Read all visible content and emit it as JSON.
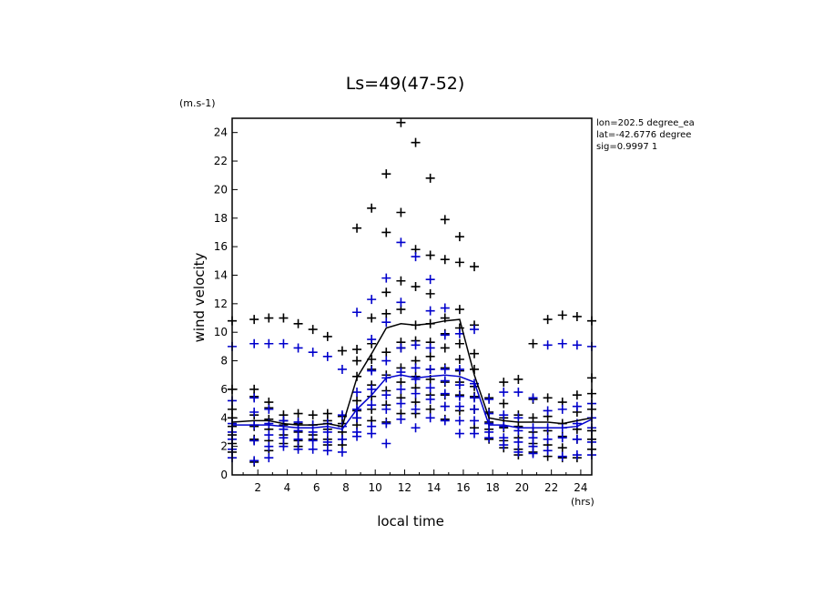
{
  "chart_data": {
    "type": "scatter",
    "title": "Ls=49(47-52)",
    "xlabel": "local time",
    "ylabel": "wind velocity",
    "y_unit": "(m.s-1)",
    "x_unit": "(hrs)",
    "xlim": [
      0.25,
      24.75
    ],
    "ylim": [
      0,
      25
    ],
    "xticks": [
      2,
      4,
      6,
      8,
      10,
      12,
      14,
      16,
      18,
      20,
      22,
      24
    ],
    "yticks": [
      0,
      2,
      4,
      6,
      8,
      10,
      12,
      14,
      16,
      18,
      20,
      22,
      24
    ],
    "annotations": [
      "lon=202.5 degree_ea",
      "lat=-42.6776 degree",
      "sig=0.9997 1"
    ],
    "colors": {
      "black": "#000000",
      "blue": "#0000cc"
    },
    "series": [
      {
        "color": "black",
        "marker": "plus",
        "x": [
          0.25,
          0.25,
          0.25,
          0.25,
          0.25,
          0.25,
          0.25,
          0.25,
          1.75,
          1.75,
          1.75,
          1.75,
          1.75,
          1.75,
          1.75,
          1.75,
          2.75,
          2.75,
          2.75,
          2.75,
          2.75,
          2.75,
          2.75,
          3.75,
          3.75,
          3.75,
          3.75,
          3.75,
          3.75,
          4.75,
          4.75,
          4.75,
          4.75,
          4.75,
          4.75,
          5.75,
          5.75,
          5.75,
          5.75,
          5.75,
          6.75,
          6.75,
          6.75,
          6.75,
          6.75,
          6.75,
          7.75,
          7.75,
          7.75,
          7.75,
          7.75,
          7.75,
          8.75,
          8.75,
          8.75,
          8.75,
          8.75,
          8.75,
          8.75,
          8.75,
          9.75,
          9.75,
          9.75,
          9.75,
          9.75,
          9.75,
          9.75,
          9.75,
          9.75,
          10.75,
          10.75,
          10.75,
          10.75,
          10.75,
          10.75,
          10.75,
          10.75,
          10.75,
          11.75,
          11.75,
          11.75,
          11.75,
          11.75,
          11.75,
          11.75,
          11.75,
          11.75,
          11.75,
          12.75,
          12.75,
          12.75,
          12.75,
          12.75,
          12.75,
          12.75,
          12.75,
          12.75,
          12.75,
          13.75,
          13.75,
          13.75,
          13.75,
          13.75,
          13.75,
          13.75,
          13.75,
          13.75,
          13.75,
          14.75,
          14.75,
          14.75,
          14.75,
          14.75,
          14.75,
          14.75,
          14.75,
          14.75,
          14.75,
          15.75,
          15.75,
          15.75,
          15.75,
          15.75,
          15.75,
          15.75,
          15.75,
          15.75,
          15.75,
          16.75,
          16.75,
          16.75,
          16.75,
          16.75,
          16.75,
          16.75,
          16.75,
          17.75,
          17.75,
          17.75,
          17.75,
          17.75,
          18.75,
          18.75,
          18.75,
          18.75,
          18.75,
          18.75,
          19.75,
          19.75,
          19.75,
          19.75,
          19.75,
          19.75,
          20.75,
          20.75,
          20.75,
          20.75,
          20.75,
          20.75,
          21.75,
          21.75,
          21.75,
          21.75,
          21.75,
          21.75,
          22.75,
          22.75,
          22.75,
          22.75,
          22.75,
          22.75,
          23.75,
          23.75,
          23.75,
          23.75,
          23.75,
          23.75,
          24.75,
          24.75,
          24.75,
          24.75,
          24.75,
          24.75,
          24.75
        ],
        "y": [
          10.8,
          6.0,
          4.6,
          4.0,
          3.4,
          2.8,
          2.2,
          1.6,
          10.9,
          6.0,
          5.5,
          4.2,
          3.4,
          2.5,
          2.4,
          0.9,
          11.0,
          5.1,
          4.7,
          3.9,
          3.2,
          2.4,
          1.7,
          11.0,
          4.2,
          3.8,
          3.5,
          2.8,
          2.2,
          10.6,
          4.3,
          3.6,
          3.0,
          2.4,
          2.0,
          10.2,
          4.2,
          3.5,
          2.8,
          2.5,
          9.7,
          4.3,
          3.8,
          3.2,
          2.5,
          2.1,
          8.7,
          4.1,
          3.6,
          3.0,
          2.5,
          2.1,
          17.3,
          8.8,
          8.0,
          6.9,
          5.2,
          4.5,
          4.0,
          3.5,
          18.7,
          11.0,
          9.2,
          8.1,
          7.4,
          6.3,
          5.5,
          4.6,
          3.8,
          21.1,
          17.0,
          12.8,
          11.3,
          8.6,
          7.0,
          5.9,
          4.9,
          3.7,
          24.7,
          18.4,
          13.6,
          11.6,
          9.3,
          8.9,
          7.5,
          6.5,
          5.4,
          4.3,
          23.3,
          15.8,
          13.2,
          10.5,
          9.4,
          8.0,
          6.9,
          6.1,
          5.1,
          4.3,
          20.8,
          15.4,
          12.7,
          10.6,
          9.3,
          8.3,
          7.4,
          6.7,
          5.6,
          4.6,
          17.9,
          15.1,
          11.0,
          9.9,
          8.9,
          7.5,
          6.5,
          5.6,
          4.8,
          3.9,
          16.7,
          14.9,
          11.6,
          10.3,
          9.2,
          8.1,
          7.3,
          6.5,
          5.6,
          4.5,
          14.6,
          10.5,
          8.5,
          7.4,
          6.2,
          5.5,
          4.6,
          3.3,
          5.4,
          4.4,
          3.7,
          3.2,
          2.5,
          6.5,
          5.0,
          4.0,
          3.3,
          2.4,
          1.9,
          6.7,
          4.2,
          3.4,
          2.6,
          1.8,
          1.4,
          9.2,
          5.3,
          4.0,
          3.0,
          2.2,
          1.6,
          10.9,
          5.4,
          4.1,
          3.1,
          2.1,
          1.3,
          11.2,
          5.1,
          3.6,
          2.7,
          1.9,
          1.2,
          11.1,
          5.6,
          4.4,
          3.2,
          2.5,
          1.2,
          10.8,
          6.8,
          5.7,
          4.6,
          3.1,
          2.5,
          1.8
        ]
      },
      {
        "color": "blue",
        "marker": "plus",
        "x": [
          0.25,
          0.25,
          0.25,
          0.25,
          0.25,
          0.25,
          0.25,
          1.75,
          1.75,
          1.75,
          1.75,
          1.75,
          1.75,
          2.75,
          2.75,
          2.75,
          2.75,
          2.75,
          2.75,
          3.75,
          3.75,
          3.75,
          3.75,
          3.75,
          4.75,
          4.75,
          4.75,
          4.75,
          4.75,
          5.75,
          5.75,
          5.75,
          5.75,
          5.75,
          6.75,
          6.75,
          6.75,
          6.75,
          6.75,
          7.75,
          7.75,
          7.75,
          7.75,
          7.75,
          8.75,
          8.75,
          8.75,
          8.75,
          8.75,
          8.75,
          9.75,
          9.75,
          9.75,
          9.75,
          9.75,
          9.75,
          9.75,
          10.75,
          10.75,
          10.75,
          10.75,
          10.75,
          10.75,
          10.75,
          10.75,
          11.75,
          11.75,
          11.75,
          11.75,
          11.75,
          11.75,
          11.75,
          12.75,
          12.75,
          12.75,
          12.75,
          12.75,
          12.75,
          12.75,
          13.75,
          13.75,
          13.75,
          13.75,
          13.75,
          13.75,
          13.75,
          14.75,
          14.75,
          14.75,
          14.75,
          14.75,
          14.75,
          14.75,
          15.75,
          15.75,
          15.75,
          15.75,
          15.75,
          15.75,
          15.75,
          16.75,
          16.75,
          16.75,
          16.75,
          16.75,
          16.75,
          17.75,
          17.75,
          17.75,
          17.75,
          17.75,
          18.75,
          18.75,
          18.75,
          18.75,
          18.75,
          19.75,
          19.75,
          19.75,
          19.75,
          19.75,
          20.75,
          20.75,
          20.75,
          20.75,
          20.75,
          21.75,
          21.75,
          21.75,
          21.75,
          21.75,
          22.75,
          22.75,
          22.75,
          22.75,
          22.75,
          23.75,
          23.75,
          23.75,
          23.75,
          23.75,
          24.75,
          24.75,
          24.75,
          24.75,
          24.75,
          24.75
        ],
        "y": [
          9.0,
          5.2,
          3.6,
          3.0,
          2.5,
          1.8,
          1.2,
          9.2,
          5.4,
          4.4,
          3.5,
          2.4,
          1.0,
          9.2,
          4.6,
          3.6,
          2.8,
          2.0,
          1.2,
          9.2,
          3.8,
          3.2,
          2.6,
          2.0,
          8.9,
          3.7,
          3.1,
          2.5,
          1.8,
          8.6,
          3.5,
          3.0,
          2.4,
          1.8,
          8.3,
          3.6,
          3.0,
          2.3,
          1.7,
          7.4,
          4.2,
          3.4,
          2.5,
          1.6,
          11.4,
          5.8,
          4.6,
          4.0,
          3.0,
          2.7,
          12.3,
          9.5,
          7.3,
          6.0,
          4.9,
          3.4,
          2.9,
          13.8,
          10.7,
          8.0,
          6.8,
          5.6,
          4.6,
          3.6,
          2.2,
          16.3,
          12.1,
          8.9,
          7.2,
          6.0,
          5.0,
          3.9,
          15.3,
          9.1,
          7.5,
          6.7,
          5.7,
          4.6,
          3.3,
          13.7,
          11.5,
          8.9,
          7.4,
          6.1,
          5.3,
          4.0,
          11.7,
          9.8,
          7.4,
          6.6,
          5.7,
          4.8,
          3.8,
          9.9,
          7.4,
          6.3,
          5.5,
          4.8,
          3.8,
          2.9,
          10.2,
          6.4,
          5.4,
          4.6,
          3.8,
          2.9,
          5.3,
          4.3,
          3.6,
          3.0,
          2.6,
          5.8,
          4.2,
          3.4,
          2.6,
          2.1,
          5.8,
          4.0,
          3.1,
          2.3,
          1.6,
          5.4,
          3.3,
          2.6,
          2.0,
          1.5,
          9.1,
          4.5,
          3.3,
          2.5,
          1.7,
          9.2,
          4.6,
          3.3,
          2.6,
          1.3,
          9.1,
          4.8,
          3.6,
          2.5,
          1.4,
          9.0,
          5.0,
          4.0,
          3.3,
          2.3,
          1.4
        ]
      },
      {
        "color": "black",
        "marker": "line",
        "x": [
          0.25,
          1.75,
          2.75,
          3.75,
          4.75,
          5.75,
          6.75,
          7.75,
          8.75,
          9.75,
          10.75,
          11.75,
          12.75,
          13.75,
          14.75,
          15.75,
          16.75,
          17.75,
          18.75,
          19.75,
          20.75,
          21.75,
          22.75,
          23.75,
          24.75
        ],
        "y": [
          3.7,
          3.8,
          3.8,
          3.6,
          3.5,
          3.5,
          3.6,
          3.4,
          6.8,
          8.5,
          10.3,
          10.6,
          10.5,
          10.6,
          10.8,
          10.9,
          7.0,
          4.0,
          3.8,
          3.7,
          3.7,
          3.7,
          3.6,
          3.8,
          4.0
        ]
      },
      {
        "color": "blue",
        "marker": "line",
        "x": [
          0.25,
          1.75,
          2.75,
          3.75,
          4.75,
          5.75,
          6.75,
          7.75,
          8.75,
          9.75,
          10.75,
          11.75,
          12.75,
          13.75,
          14.75,
          15.75,
          16.75,
          17.75,
          18.75,
          19.75,
          20.75,
          21.75,
          22.75,
          23.75,
          24.75
        ],
        "y": [
          3.5,
          3.5,
          3.5,
          3.4,
          3.3,
          3.3,
          3.4,
          3.2,
          4.6,
          5.6,
          6.8,
          7.0,
          6.8,
          6.9,
          7.0,
          6.9,
          6.5,
          3.5,
          3.5,
          3.3,
          3.3,
          3.3,
          3.3,
          3.4,
          3.9
        ]
      }
    ]
  }
}
